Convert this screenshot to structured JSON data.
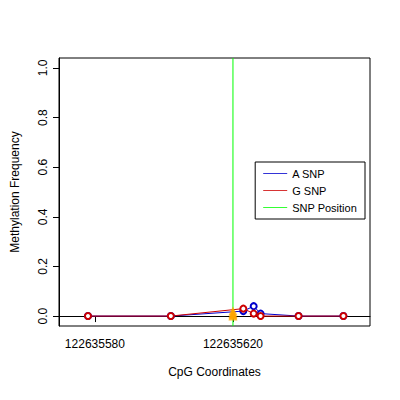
{
  "chart_data": {
    "type": "line",
    "x_label": "CpG Coordinates",
    "y_label": "Methylation Frequency",
    "xlim": [
      122635569.6,
      122635659.7
    ],
    "xticks": [
      122635580,
      122635620
    ],
    "ylim": [
      -0.04,
      1.04
    ],
    "yticks": [
      {
        "value": 0,
        "label": "0.0"
      },
      {
        "value": 0.2,
        "label": "0.2"
      },
      {
        "value": 0.4,
        "label": "0.4"
      },
      {
        "value": 0.6,
        "label": "0.6"
      },
      {
        "value": 0.8,
        "label": "0.8"
      },
      {
        "value": 1,
        "label": "1.0"
      }
    ],
    "legend": "right",
    "series": [
      {
        "name": "A SNP",
        "color": "#0000cd",
        "marker": "circle",
        "x": [
          122635578,
          122635602,
          122635623,
          122635626,
          122635628,
          122635639,
          122635652
        ],
        "values": [
          0,
          0,
          0.02,
          0.04,
          0.01,
          0,
          0
        ]
      },
      {
        "name": "G SNP",
        "color": "#cd0000",
        "marker": "circle",
        "x": [
          122635578,
          122635602,
          122635623,
          122635626,
          122635628,
          122635639,
          122635652
        ],
        "values": [
          0,
          0,
          0.03,
          0.01,
          0,
          0,
          0
        ]
      }
    ],
    "snp_position": {
      "name": "SNP Position",
      "x": 122635620,
      "color": "#00ff00"
    },
    "snp_points": {
      "x": [
        122635620,
        122635620,
        122635620,
        122635620
      ],
      "values": [
        0,
        0.005,
        0.01,
        0.02
      ],
      "color": "#ffa500",
      "marker": "triangle"
    }
  }
}
